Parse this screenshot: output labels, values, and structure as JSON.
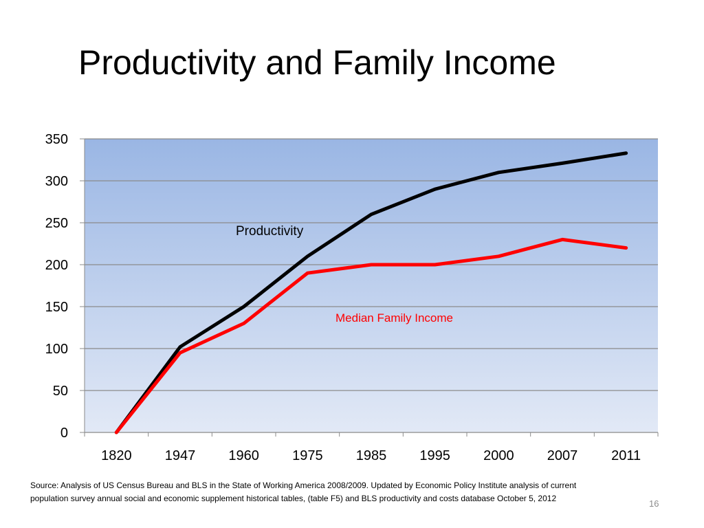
{
  "slide": {
    "title": "Productivity and Family Income",
    "source": "Source: Analysis of US Census Bureau and BLS in the State of Working America 2008/2009. Updated by Economic Policy Institute analysis of current\npopulation survey annual social and economic supplement historical tables, (table F5) and BLS productivity and costs database October 5, 2012",
    "page_number": "16"
  },
  "chart_data": {
    "type": "line",
    "categories": [
      "1820",
      "1947",
      "1960",
      "1975",
      "1985",
      "1995",
      "2000",
      "2007",
      "2011"
    ],
    "series": [
      {
        "name": "Productivity",
        "color": "#000000",
        "values": [
          0,
          102,
          150,
          210,
          260,
          290,
          310,
          321,
          333
        ]
      },
      {
        "name": "Median Family Income",
        "color": "#ff0000",
        "values": [
          0,
          95,
          130,
          190,
          200,
          200,
          210,
          230,
          220
        ]
      }
    ],
    "ylim": [
      0,
      350
    ],
    "yticks": [
      0,
      50,
      100,
      150,
      200,
      250,
      300,
      350
    ],
    "grid": true,
    "background": {
      "top": "#9ab6e4",
      "bottom": "#e2e9f6"
    }
  }
}
